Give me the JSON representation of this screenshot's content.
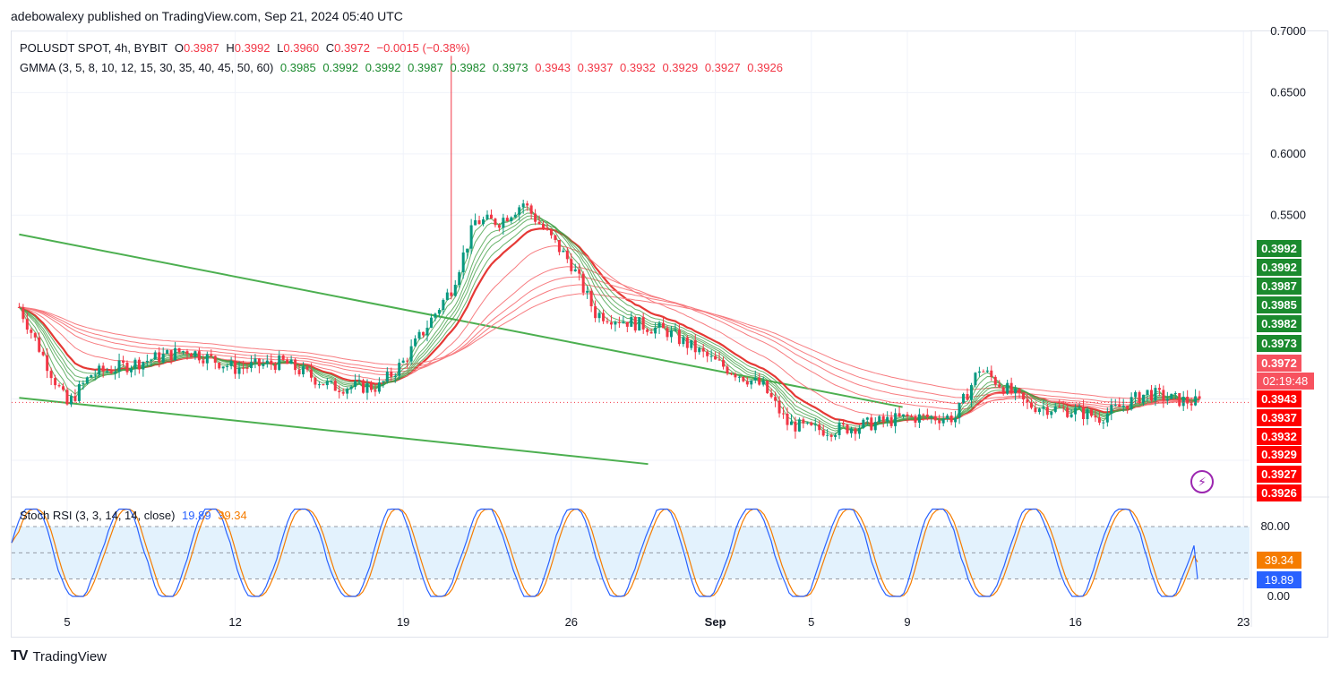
{
  "header": {
    "publish_text": "adebowalexy published on TradingView.com, Sep 21, 2024 05:40 UTC"
  },
  "legend": {
    "symbol": "POLUSDT SPOT, 4h, BYBIT",
    "o_label": "O",
    "o_value": "0.3987",
    "h_label": "H",
    "h_value": "0.3992",
    "l_label": "L",
    "l_value": "0.3960",
    "c_label": "C",
    "c_value": "0.3972",
    "change": "−0.0015 (−0.38%)",
    "gmma_label": "GMMA (3, 5, 8, 10, 12, 15, 30, 35, 40, 45, 50, 60)",
    "gmma_values": [
      "0.3985",
      "0.3992",
      "0.3992",
      "0.3987",
      "0.3982",
      "0.3973",
      "0.3943",
      "0.3937",
      "0.3932",
      "0.3929",
      "0.3927",
      "0.3926"
    ],
    "stoch_label": "Stoch RSI (3, 3, 14, 14, close)",
    "stoch_k": "19.89",
    "stoch_d": "39.34"
  },
  "colors": {
    "up": "#089981",
    "down": "#f23645",
    "gmma_short": "#43a047",
    "gmma_long": "#f23645",
    "trendline": "#4caf50",
    "stoch_k": "#2962ff",
    "stoch_d": "#f57c00",
    "band": "#e3f2fd"
  },
  "price_axis": {
    "ticks": [
      "0.7000",
      "0.6500",
      "0.6000",
      "0.5500"
    ]
  },
  "price_tags": [
    {
      "text": "0.3992",
      "color": "#1b8a2e"
    },
    {
      "text": "0.3992",
      "color": "#1b8a2e"
    },
    {
      "text": "0.3987",
      "color": "#1b8a2e"
    },
    {
      "text": "0.3985",
      "color": "#1b8a2e"
    },
    {
      "text": "0.3982",
      "color": "#1b8a2e"
    },
    {
      "text": "0.3973",
      "color": "#1b8a2e"
    },
    {
      "text": "0.3972",
      "color": "#f7525f"
    },
    {
      "text": "02:19:48",
      "color": "#f7525f"
    },
    {
      "text": "0.3943",
      "color": "#ff0000"
    },
    {
      "text": "0.3937",
      "color": "#ff0000"
    },
    {
      "text": "0.3932",
      "color": "#ff0000"
    },
    {
      "text": "0.3929",
      "color": "#ff0000"
    },
    {
      "text": "0.3927",
      "color": "#ff0000"
    },
    {
      "text": "0.3926",
      "color": "#ff0000"
    }
  ],
  "stoch_axis": {
    "ticks": [
      "80.00",
      "0.00"
    ],
    "tag_d": "39.34",
    "tag_k": "19.89"
  },
  "time_axis": {
    "labels": [
      "5",
      "12",
      "19",
      "26",
      "Sep",
      "5",
      "9",
      "16",
      "23"
    ]
  },
  "footer": {
    "brand": "TradingView",
    "mark": "TV"
  },
  "chart_data": {
    "type": "line",
    "title": "POLUSDT SPOT, 4h, BYBIT",
    "price_range": [
      0.32,
      0.7
    ],
    "price_series": {
      "name": "POLUSDT close (approx.)",
      "x": [
        "Aug 3",
        "Aug 5",
        "Aug 6",
        "Aug 8",
        "Aug 10",
        "Aug 12",
        "Aug 14",
        "Aug 16",
        "Aug 18",
        "Aug 19",
        "Aug 21",
        "Aug 22",
        "Aug 23",
        "Aug 24",
        "Aug 25",
        "Aug 26",
        "Aug 27",
        "Aug 28",
        "Aug 30",
        "Sep 1",
        "Sep 3",
        "Sep 4",
        "Sep 5",
        "Sep 6",
        "Sep 7",
        "Sep 9",
        "Sep 11",
        "Sep 12",
        "Sep 13",
        "Sep 14",
        "Sep 16",
        "Sep 17",
        "Sep 18",
        "Sep 19",
        "Sep 20",
        "Sep 21"
      ],
      "values": [
        0.475,
        0.395,
        0.42,
        0.43,
        0.44,
        0.425,
        0.43,
        0.41,
        0.41,
        0.43,
        0.49,
        0.545,
        0.545,
        0.56,
        0.535,
        0.51,
        0.47,
        0.465,
        0.455,
        0.43,
        0.41,
        0.38,
        0.375,
        0.375,
        0.378,
        0.385,
        0.385,
        0.425,
        0.41,
        0.395,
        0.39,
        0.385,
        0.395,
        0.405,
        0.4,
        0.3972
      ]
    },
    "spike": {
      "x": "Aug 21",
      "high": 0.68
    },
    "stoch_rsi": {
      "k": 19.89,
      "d": 39.34,
      "levels": [
        80,
        20
      ]
    },
    "grid": true
  }
}
